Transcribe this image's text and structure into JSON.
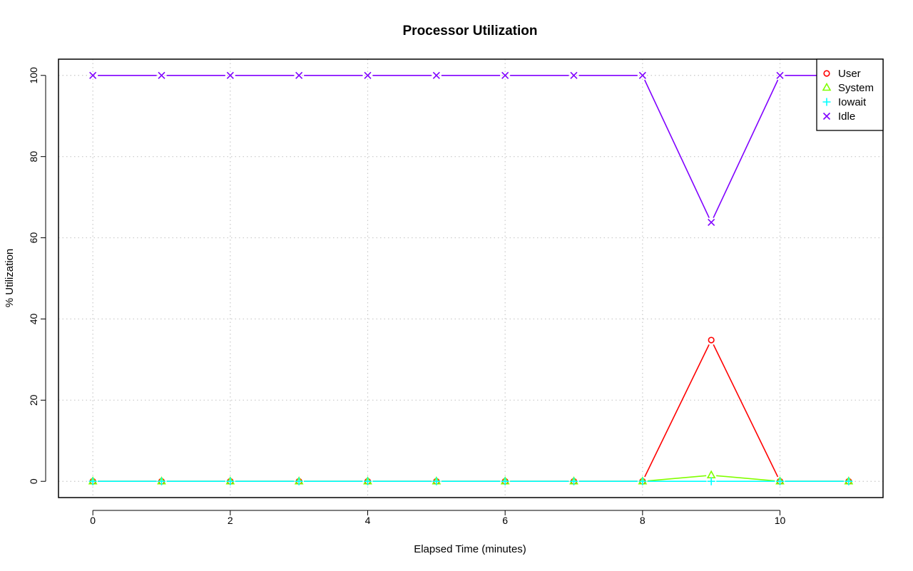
{
  "chart_data": {
    "type": "line",
    "title": "Processor Utilization",
    "xlabel": "Elapsed Time (minutes)",
    "ylabel": "% Utilization",
    "xlim": [
      -0.5,
      11.5
    ],
    "ylim": [
      -4,
      104
    ],
    "x_ticks": [
      0,
      2,
      4,
      6,
      8,
      10
    ],
    "y_ticks": [
      0,
      20,
      40,
      60,
      80,
      100
    ],
    "grid": true,
    "legend_position": "top-right",
    "x": [
      0,
      1,
      2,
      3,
      4,
      5,
      6,
      7,
      8,
      9,
      10,
      11
    ],
    "series": [
      {
        "name": "User",
        "color": "#ff0000",
        "marker": "circle",
        "values": [
          0,
          0,
          0,
          0,
          0,
          0,
          0,
          0,
          0,
          34.8,
          0,
          0
        ]
      },
      {
        "name": "System",
        "color": "#80ff00",
        "marker": "triangle",
        "values": [
          0,
          0,
          0,
          0,
          0,
          0,
          0,
          0,
          0,
          1.5,
          0,
          0
        ]
      },
      {
        "name": "Iowait",
        "color": "#00ffff",
        "marker": "plus",
        "values": [
          0,
          0,
          0,
          0,
          0,
          0,
          0,
          0,
          0,
          0,
          0,
          0
        ]
      },
      {
        "name": "Idle",
        "color": "#8000ff",
        "marker": "cross",
        "values": [
          100,
          100,
          100,
          100,
          100,
          100,
          100,
          100,
          100,
          63.8,
          100,
          100
        ]
      }
    ]
  }
}
